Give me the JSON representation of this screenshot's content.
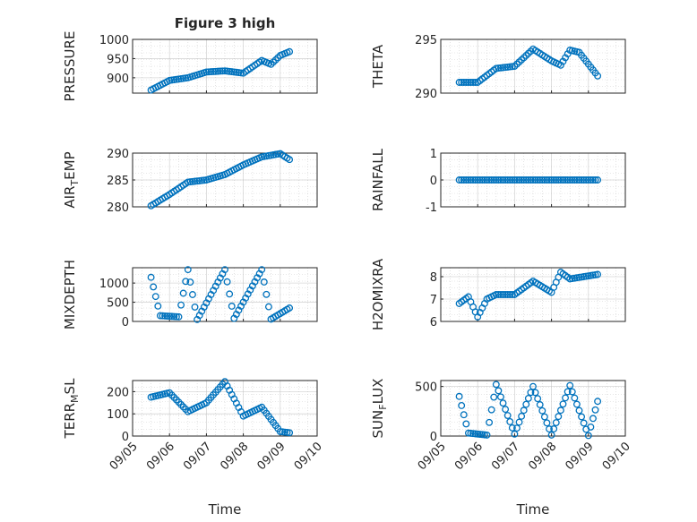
{
  "title": "Figure 3 high",
  "xlabel": "Time",
  "x_ticks": [
    "09/05",
    "09/06",
    "09/07",
    "09/08",
    "09/09",
    "09/10"
  ],
  "colors": {
    "marker": "#0072BD",
    "axis": "#262626",
    "grid": "#bdbdbd",
    "background": "#ffffff"
  },
  "chart_data": [
    {
      "type": "scatter",
      "ylabel": "PRESSURE",
      "grid": true,
      "xlim": [
        "2014-09-05",
        "2014-09-10"
      ],
      "ylim": [
        860,
        1000
      ],
      "yticks": [
        900,
        950,
        1000
      ],
      "x": [
        "2014-09-05 12:00",
        "2014-09-06 00:00",
        "2014-09-06 12:00",
        "2014-09-07 00:00",
        "2014-09-07 12:00",
        "2014-09-08 00:00",
        "2014-09-08 12:00",
        "2014-09-08 18:00",
        "2014-09-09 00:00",
        "2014-09-09 06:00"
      ],
      "y": [
        868,
        893,
        900,
        915,
        918,
        912,
        945,
        935,
        958,
        968
      ]
    },
    {
      "type": "scatter",
      "ylabel": "THETA",
      "grid": true,
      "xlim": [
        "2014-09-05",
        "2014-09-10"
      ],
      "ylim": [
        290,
        295
      ],
      "yticks": [
        290,
        295
      ],
      "x": [
        "2014-09-05 12:00",
        "2014-09-06 00:00",
        "2014-09-06 12:00",
        "2014-09-07 00:00",
        "2014-09-07 12:00",
        "2014-09-08 00:00",
        "2014-09-08 06:00",
        "2014-09-08 12:00",
        "2014-09-08 18:00",
        "2014-09-09 06:00"
      ],
      "y": [
        291.0,
        291.0,
        292.3,
        292.5,
        294.1,
        293.0,
        292.6,
        294.0,
        293.8,
        291.6
      ]
    },
    {
      "type": "scatter",
      "ylabel": "AIR_TEMP",
      "grid": true,
      "xlim": [
        "2014-09-05",
        "2014-09-10"
      ],
      "ylim": [
        280,
        290
      ],
      "yticks": [
        280,
        285,
        290
      ],
      "x": [
        "2014-09-05 12:00",
        "2014-09-06 00:00",
        "2014-09-06 12:00",
        "2014-09-07 00:00",
        "2014-09-07 12:00",
        "2014-09-08 00:00",
        "2014-09-08 12:00",
        "2014-09-09 00:00",
        "2014-09-09 06:00"
      ],
      "y": [
        280.2,
        282.3,
        284.6,
        285.0,
        286.0,
        287.8,
        289.3,
        289.9,
        288.8
      ]
    },
    {
      "type": "scatter",
      "ylabel": "RAINFALL",
      "grid": true,
      "xlim": [
        "2014-09-05",
        "2014-09-10"
      ],
      "ylim": [
        -1,
        1
      ],
      "yticks": [
        -1,
        0,
        1
      ],
      "x": [
        "2014-09-05 12:00",
        "2014-09-06 12:00",
        "2014-09-07 12:00",
        "2014-09-08 12:00",
        "2014-09-09 06:00"
      ],
      "y": [
        0,
        0,
        0,
        0,
        0
      ]
    },
    {
      "type": "scatter",
      "ylabel": "MIXDEPTH",
      "grid": true,
      "xlim": [
        "2014-09-05",
        "2014-09-10"
      ],
      "ylim": [
        0,
        1400
      ],
      "yticks": [
        0,
        500,
        1000
      ],
      "x": [
        "2014-09-05 12:00",
        "2014-09-05 18:00",
        "2014-09-06 06:00",
        "2014-09-06 12:00",
        "2014-09-06 18:00",
        "2014-09-07 12:00",
        "2014-09-07 18:00",
        "2014-09-08 12:00",
        "2014-09-08 18:00",
        "2014-09-09 06:00"
      ],
      "y": [
        1150,
        150,
        120,
        1350,
        50,
        1350,
        80,
        1350,
        60,
        350
      ]
    },
    {
      "type": "scatter",
      "ylabel": "H2OMIXRA",
      "grid": true,
      "xlim": [
        "2014-09-05",
        "2014-09-10"
      ],
      "ylim": [
        6,
        8.4
      ],
      "yticks": [
        6,
        7,
        8
      ],
      "x": [
        "2014-09-05 12:00",
        "2014-09-05 18:00",
        "2014-09-06 00:00",
        "2014-09-06 06:00",
        "2014-09-06 12:00",
        "2014-09-07 00:00",
        "2014-09-07 12:00",
        "2014-09-08 00:00",
        "2014-09-08 06:00",
        "2014-09-08 12:00",
        "2014-09-09 06:00"
      ],
      "y": [
        6.8,
        7.1,
        6.2,
        7.0,
        7.2,
        7.2,
        7.8,
        7.3,
        8.2,
        7.9,
        8.1
      ]
    },
    {
      "type": "scatter",
      "ylabel": "TERR_MSL",
      "grid": true,
      "xlim": [
        "2014-09-05",
        "2014-09-10"
      ],
      "ylim": [
        0,
        250
      ],
      "yticks": [
        0,
        100,
        200
      ],
      "x": [
        "2014-09-05 12:00",
        "2014-09-06 00:00",
        "2014-09-06 12:00",
        "2014-09-07 00:00",
        "2014-09-07 12:00",
        "2014-09-08 00:00",
        "2014-09-08 12:00",
        "2014-09-09 00:00",
        "2014-09-09 06:00"
      ],
      "y": [
        175,
        195,
        110,
        150,
        245,
        90,
        130,
        20,
        15
      ]
    },
    {
      "type": "scatter",
      "ylabel": "SUN_FLUX",
      "grid": true,
      "xlim": [
        "2014-09-05",
        "2014-09-10"
      ],
      "ylim": [
        0,
        560
      ],
      "yticks": [
        0,
        500
      ],
      "x": [
        "2014-09-05 12:00",
        "2014-09-05 18:00",
        "2014-09-06 06:00",
        "2014-09-06 12:00",
        "2014-09-07 00:00",
        "2014-09-07 12:00",
        "2014-09-08 00:00",
        "2014-09-08 12:00",
        "2014-09-09 00:00",
        "2014-09-09 06:00"
      ],
      "y": [
        400,
        30,
        10,
        520,
        20,
        500,
        10,
        510,
        5,
        350
      ]
    }
  ]
}
